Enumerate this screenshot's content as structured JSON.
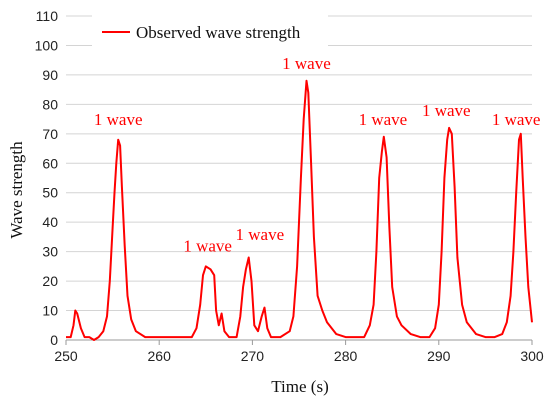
{
  "chart_data": {
    "type": "line",
    "title": "",
    "xlabel": "Time (s)",
    "ylabel": "Wave strength",
    "xlim": [
      250,
      300
    ],
    "ylim": [
      0,
      110
    ],
    "xticks": [
      250,
      260,
      270,
      280,
      290,
      300
    ],
    "yticks": [
      0,
      10,
      20,
      30,
      40,
      50,
      60,
      70,
      80,
      90,
      100,
      110
    ],
    "grid": "horizontal",
    "legend": {
      "position": "top-left",
      "entries": [
        "Observed wave strength"
      ]
    },
    "series": [
      {
        "name": "Observed wave strength",
        "color": "#ff0000",
        "points": [
          [
            250.0,
            1
          ],
          [
            250.5,
            1
          ],
          [
            250.8,
            5
          ],
          [
            251.0,
            10
          ],
          [
            251.2,
            9
          ],
          [
            251.6,
            4
          ],
          [
            252.0,
            1
          ],
          [
            252.5,
            1
          ],
          [
            253.0,
            0
          ],
          [
            253.5,
            1
          ],
          [
            254.0,
            3
          ],
          [
            254.4,
            8
          ],
          [
            254.7,
            20
          ],
          [
            255.0,
            38
          ],
          [
            255.2,
            50
          ],
          [
            255.4,
            60
          ],
          [
            255.6,
            68
          ],
          [
            255.8,
            66
          ],
          [
            256.0,
            52
          ],
          [
            256.3,
            32
          ],
          [
            256.6,
            15
          ],
          [
            257.0,
            7
          ],
          [
            257.5,
            3
          ],
          [
            258.5,
            1
          ],
          [
            260.0,
            1
          ],
          [
            262.0,
            1
          ],
          [
            263.5,
            1
          ],
          [
            264.0,
            4
          ],
          [
            264.4,
            12
          ],
          [
            264.7,
            22
          ],
          [
            265.0,
            25
          ],
          [
            265.5,
            24
          ],
          [
            265.9,
            22
          ],
          [
            266.1,
            10
          ],
          [
            266.4,
            5
          ],
          [
            266.7,
            9
          ],
          [
            267.0,
            3
          ],
          [
            267.5,
            1
          ],
          [
            268.3,
            1
          ],
          [
            268.7,
            8
          ],
          [
            269.0,
            18
          ],
          [
            269.3,
            24
          ],
          [
            269.6,
            28
          ],
          [
            269.9,
            20
          ],
          [
            270.2,
            5
          ],
          [
            270.6,
            3
          ],
          [
            271.0,
            8
          ],
          [
            271.3,
            11
          ],
          [
            271.6,
            4
          ],
          [
            272.0,
            1
          ],
          [
            273.0,
            1
          ],
          [
            274.0,
            3
          ],
          [
            274.4,
            8
          ],
          [
            274.8,
            25
          ],
          [
            275.2,
            55
          ],
          [
            275.5,
            75
          ],
          [
            275.8,
            88
          ],
          [
            276.0,
            84
          ],
          [
            276.3,
            60
          ],
          [
            276.6,
            35
          ],
          [
            277.0,
            15
          ],
          [
            277.5,
            10
          ],
          [
            278.0,
            6
          ],
          [
            279.0,
            2
          ],
          [
            280.0,
            1
          ],
          [
            281.0,
            1
          ],
          [
            282.0,
            1
          ],
          [
            282.6,
            5
          ],
          [
            283.0,
            12
          ],
          [
            283.3,
            30
          ],
          [
            283.6,
            55
          ],
          [
            283.9,
            64
          ],
          [
            284.1,
            69
          ],
          [
            284.4,
            62
          ],
          [
            284.7,
            38
          ],
          [
            285.0,
            18
          ],
          [
            285.5,
            8
          ],
          [
            286.0,
            5
          ],
          [
            287.0,
            2
          ],
          [
            288.0,
            1
          ],
          [
            289.0,
            1
          ],
          [
            289.6,
            4
          ],
          [
            290.0,
            12
          ],
          [
            290.3,
            30
          ],
          [
            290.6,
            55
          ],
          [
            290.9,
            68
          ],
          [
            291.1,
            72
          ],
          [
            291.4,
            70
          ],
          [
            291.7,
            52
          ],
          [
            292.0,
            28
          ],
          [
            292.5,
            12
          ],
          [
            293.0,
            6
          ],
          [
            294.0,
            2
          ],
          [
            295.0,
            1
          ],
          [
            296.0,
            1
          ],
          [
            296.8,
            2
          ],
          [
            297.3,
            6
          ],
          [
            297.7,
            15
          ],
          [
            298.0,
            30
          ],
          [
            298.3,
            50
          ],
          [
            298.6,
            68
          ],
          [
            298.8,
            70
          ],
          [
            299.0,
            55
          ],
          [
            299.3,
            35
          ],
          [
            299.6,
            18
          ],
          [
            300.0,
            6
          ]
        ]
      }
    ],
    "annotations": [
      {
        "text": "1 wave",
        "x": 255.6,
        "y": 73
      },
      {
        "text": "1 wave",
        "x": 265.2,
        "y": 30
      },
      {
        "text": "1 wave",
        "x": 270.8,
        "y": 34
      },
      {
        "text": "1 wave",
        "x": 275.8,
        "y": 92
      },
      {
        "text": "1 wave",
        "x": 284.0,
        "y": 73
      },
      {
        "text": "1 wave",
        "x": 290.8,
        "y": 76
      },
      {
        "text": "1 wave",
        "x": 298.3,
        "y": 73
      }
    ]
  }
}
